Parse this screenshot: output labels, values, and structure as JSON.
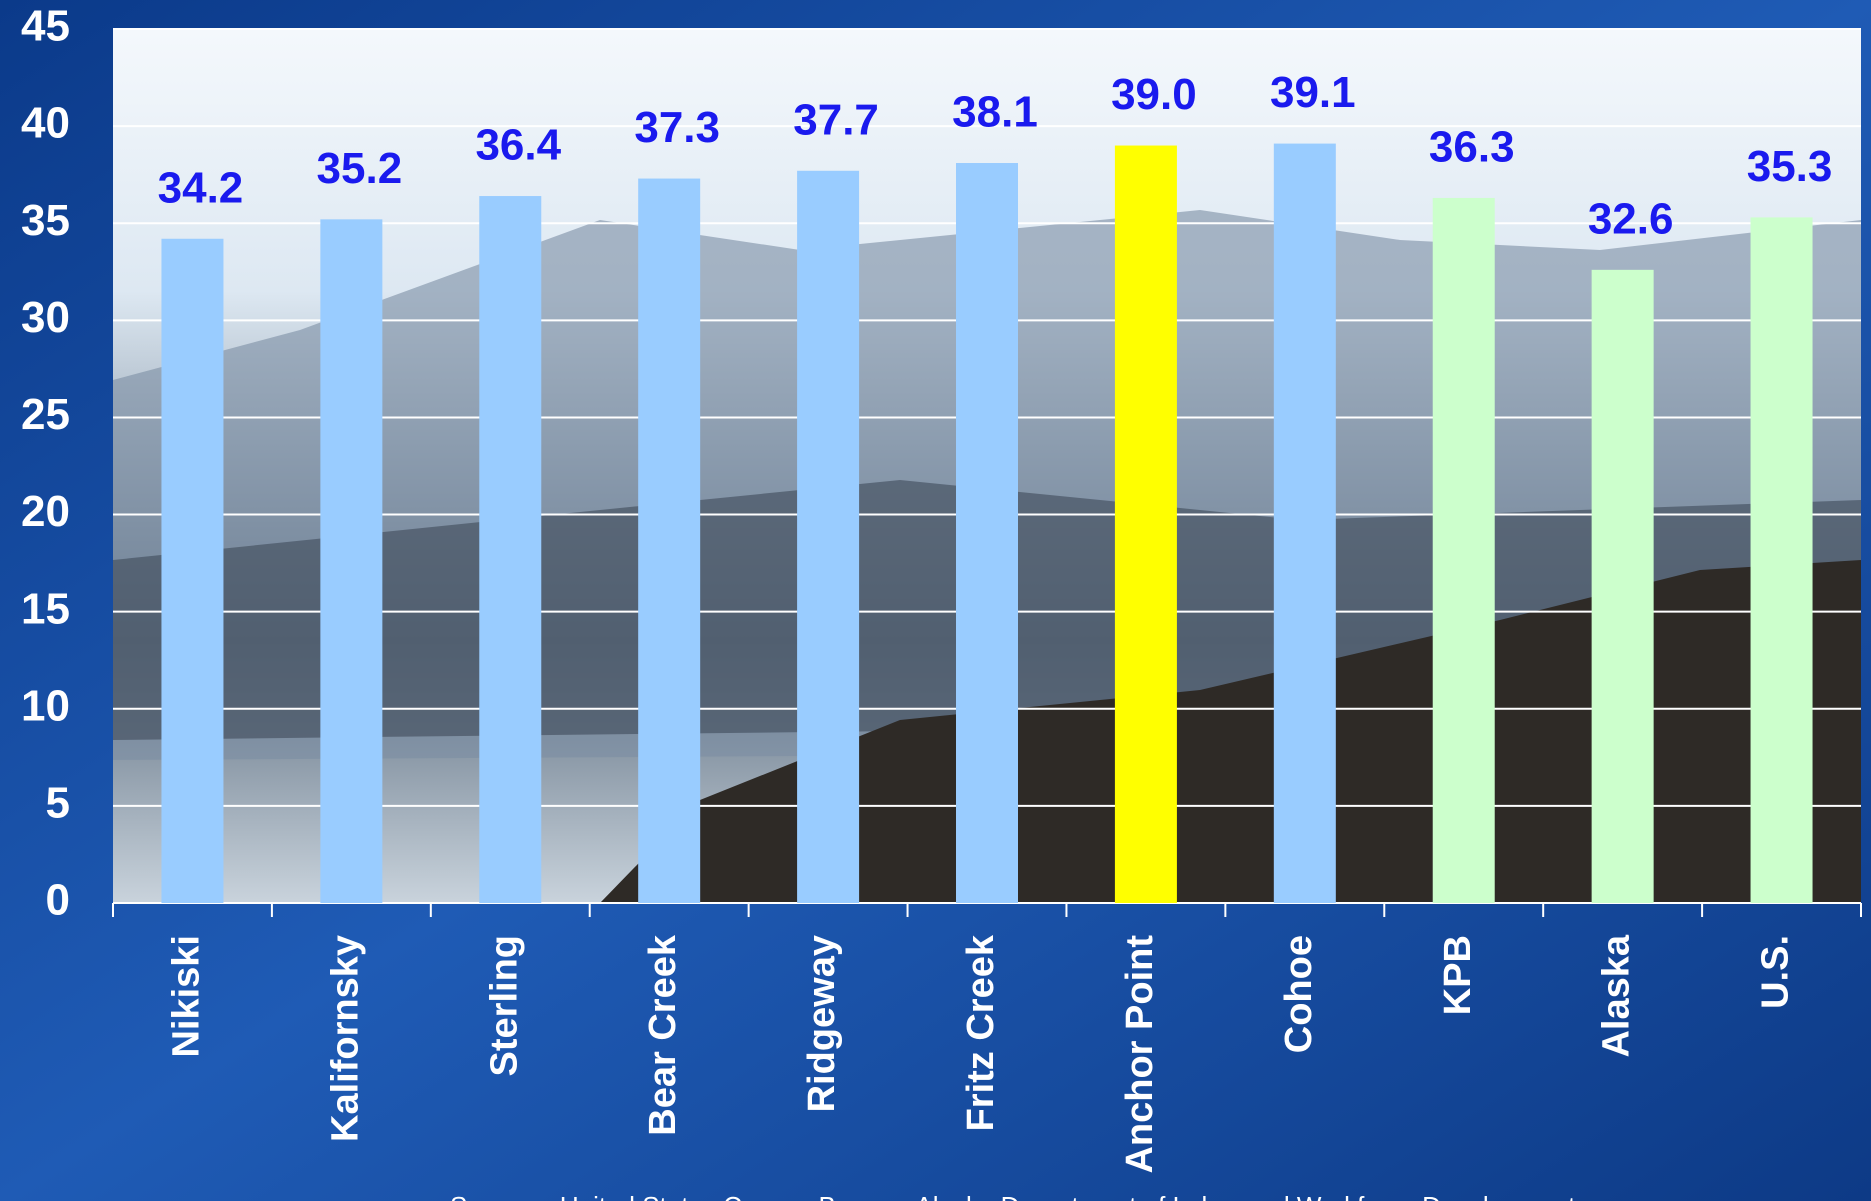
{
  "chart_data": {
    "type": "bar",
    "categories": [
      "Nikiski",
      "Kalifornsky",
      "Sterling",
      "Bear Creek",
      "Ridgeway",
      "Fritz Creek",
      "Anchor Point",
      "Cohoe",
      "KPB",
      "Alaska",
      "U.S."
    ],
    "values": [
      34.2,
      35.2,
      36.4,
      37.3,
      37.7,
      38.1,
      39.0,
      39.1,
      36.3,
      32.6,
      35.3
    ],
    "value_labels": [
      "34.2",
      "35.2",
      "36.4",
      "37.3",
      "37.7",
      "38.1",
      "39.0",
      "39.1",
      "36.3",
      "32.6",
      "35.3"
    ],
    "colors": [
      "#99ccff",
      "#99ccff",
      "#99ccff",
      "#99ccff",
      "#99ccff",
      "#99ccff",
      "#ffff00",
      "#99ccff",
      "#ccffcc",
      "#ccffcc",
      "#ccffcc"
    ],
    "ylim": [
      0,
      45
    ],
    "yticks": [
      0,
      5,
      10,
      15,
      20,
      25,
      30,
      35,
      40,
      45
    ],
    "grid": true,
    "source": "Sources: United States Census Bureau, Alaska Department of Labor and Workforce Development"
  }
}
